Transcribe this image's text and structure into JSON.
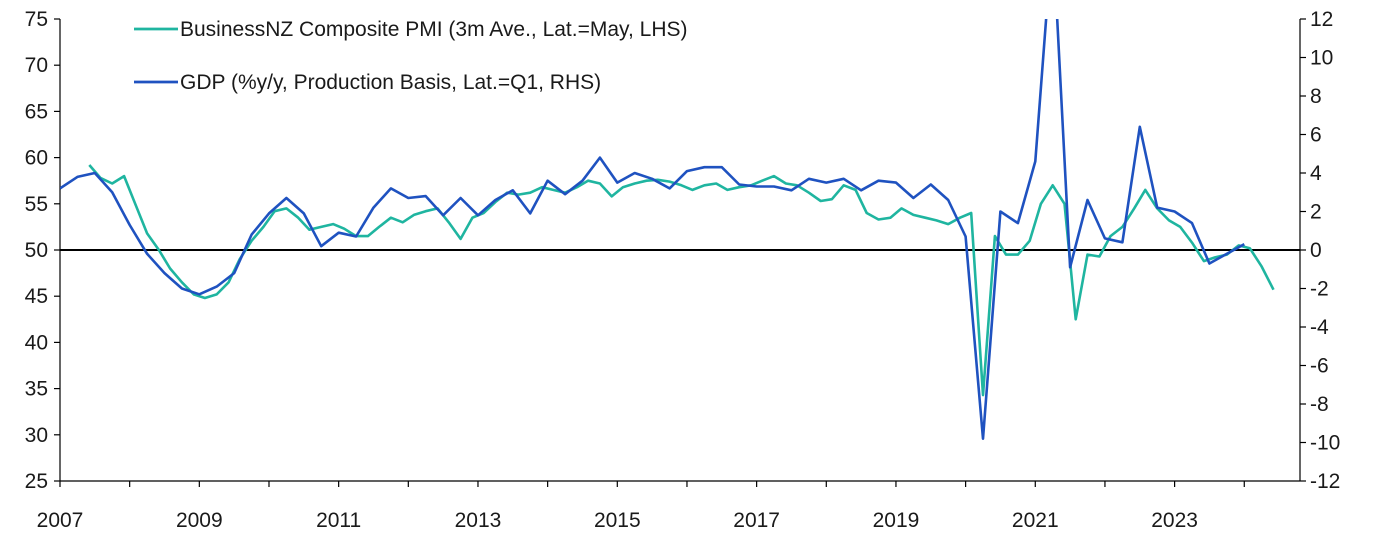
{
  "chart_data": {
    "type": "line",
    "title": "",
    "xlabel": "",
    "ylabel_left": "",
    "ylabel_right": "",
    "x_range": [
      2007,
      2024.8
    ],
    "x_ticks": [
      "2007",
      "2009",
      "2011",
      "2013",
      "2015",
      "2017",
      "2019",
      "2021",
      "2023"
    ],
    "ylim_left": [
      25,
      75
    ],
    "yticks_left": [
      "25",
      "30",
      "35",
      "40",
      "45",
      "50",
      "55",
      "60",
      "65",
      "70",
      "75"
    ],
    "ylim_right": [
      -12,
      12
    ],
    "yticks_right": [
      "-12",
      "-10",
      "-8",
      "-6",
      "-4",
      "-2",
      "0",
      "2",
      "4",
      "6",
      "8",
      "10",
      "12"
    ],
    "reference_line_left": 50,
    "legend_position": "top-left",
    "series": [
      {
        "name": "BusinessNZ Composite PMI (3m Ave., Lat.=May, LHS)",
        "axis": "left",
        "color": "#1fb5a0",
        "x": [
          2007.42,
          2007.58,
          2007.75,
          2007.92,
          2008.08,
          2008.25,
          2008.42,
          2008.58,
          2008.75,
          2008.92,
          2009.08,
          2009.25,
          2009.42,
          2009.58,
          2009.75,
          2009.92,
          2010.08,
          2010.25,
          2010.42,
          2010.58,
          2010.75,
          2010.92,
          2011.08,
          2011.25,
          2011.42,
          2011.58,
          2011.75,
          2011.92,
          2012.08,
          2012.25,
          2012.42,
          2012.58,
          2012.75,
          2012.92,
          2013.08,
          2013.25,
          2013.42,
          2013.58,
          2013.75,
          2013.92,
          2014.08,
          2014.25,
          2014.42,
          2014.58,
          2014.75,
          2014.92,
          2015.08,
          2015.25,
          2015.42,
          2015.58,
          2015.75,
          2015.92,
          2016.08,
          2016.25,
          2016.42,
          2016.58,
          2016.75,
          2016.92,
          2017.08,
          2017.25,
          2017.42,
          2017.58,
          2017.75,
          2017.92,
          2018.08,
          2018.25,
          2018.42,
          2018.58,
          2018.75,
          2018.92,
          2019.08,
          2019.25,
          2019.42,
          2019.58,
          2019.75,
          2019.92,
          2020.08,
          2020.25,
          2020.42,
          2020.58,
          2020.75,
          2020.92,
          2021.08,
          2021.25,
          2021.42,
          2021.58,
          2021.75,
          2021.92,
          2022.08,
          2022.25,
          2022.42,
          2022.58,
          2022.75,
          2022.92,
          2023.08,
          2023.25,
          2023.42,
          2023.58,
          2023.75,
          2023.92,
          2024.08,
          2024.25,
          2024.42
        ],
        "values": [
          59.2,
          57.8,
          57.2,
          58.0,
          55.0,
          51.8,
          50.0,
          48.0,
          46.5,
          45.2,
          44.8,
          45.2,
          46.5,
          49.0,
          51.0,
          52.5,
          54.2,
          54.5,
          53.5,
          52.2,
          52.5,
          52.8,
          52.3,
          51.5,
          51.5,
          52.5,
          53.5,
          53.0,
          53.8,
          54.2,
          54.5,
          53.0,
          51.2,
          53.5,
          54.0,
          55.2,
          56.2,
          56.0,
          56.2,
          56.8,
          56.5,
          56.2,
          56.8,
          57.5,
          57.2,
          55.8,
          56.8,
          57.2,
          57.5,
          57.6,
          57.4,
          57.0,
          56.5,
          57.0,
          57.2,
          56.5,
          56.8,
          57.0,
          57.5,
          58.0,
          57.2,
          57.0,
          56.2,
          55.3,
          55.5,
          57.0,
          56.5,
          54.0,
          53.3,
          53.5,
          54.5,
          53.8,
          53.5,
          53.2,
          52.8,
          53.5,
          54.0,
          34.3,
          51.5,
          49.5,
          49.5,
          51.0,
          55.0,
          57.0,
          55.0,
          42.5,
          49.5,
          49.3,
          51.5,
          52.5,
          54.5,
          56.5,
          54.5,
          53.2,
          52.5,
          50.8,
          48.8,
          49.2,
          49.5,
          50.5,
          50.2,
          48.2,
          45.7
        ]
      },
      {
        "name": "GDP (%y/y, Production Basis, Lat.=Q1, RHS)",
        "axis": "right",
        "color": "#1f52c0",
        "x": [
          2007.0,
          2007.25,
          2007.5,
          2007.75,
          2008.0,
          2008.25,
          2008.5,
          2008.75,
          2009.0,
          2009.25,
          2009.5,
          2009.75,
          2010.0,
          2010.25,
          2010.5,
          2010.75,
          2011.0,
          2011.25,
          2011.5,
          2011.75,
          2012.0,
          2012.25,
          2012.5,
          2012.75,
          2013.0,
          2013.25,
          2013.5,
          2013.75,
          2014.0,
          2014.25,
          2014.5,
          2014.75,
          2015.0,
          2015.25,
          2015.5,
          2015.75,
          2016.0,
          2016.25,
          2016.5,
          2016.75,
          2017.0,
          2017.25,
          2017.5,
          2017.75,
          2018.0,
          2018.25,
          2018.5,
          2018.75,
          2019.0,
          2019.25,
          2019.5,
          2019.75,
          2020.0,
          2020.25,
          2020.5,
          2020.75,
          2021.0,
          2021.25,
          2021.5,
          2021.75,
          2022.0,
          2022.25,
          2022.5,
          2022.75,
          2023.0,
          2023.25,
          2023.5,
          2023.75,
          2024.0
        ],
        "values": [
          3.2,
          3.8,
          4.0,
          3.0,
          1.3,
          -0.2,
          -1.2,
          -2.0,
          -2.3,
          -1.9,
          -1.2,
          0.8,
          1.9,
          2.7,
          1.9,
          0.2,
          0.9,
          0.7,
          2.2,
          3.2,
          2.7,
          2.8,
          1.8,
          2.7,
          1.8,
          2.6,
          3.1,
          1.9,
          3.6,
          2.9,
          3.6,
          4.8,
          3.5,
          4.0,
          3.7,
          3.2,
          4.1,
          4.3,
          4.3,
          3.4,
          3.3,
          3.3,
          3.1,
          3.7,
          3.5,
          3.7,
          3.1,
          3.6,
          3.5,
          2.7,
          3.4,
          2.6,
          0.7,
          -9.8,
          2.0,
          1.4,
          4.6,
          16.5,
          -0.9,
          2.6,
          0.6,
          0.4,
          6.4,
          2.2,
          2.0,
          1.4,
          -0.7,
          -0.2,
          0.3
        ]
      }
    ]
  }
}
